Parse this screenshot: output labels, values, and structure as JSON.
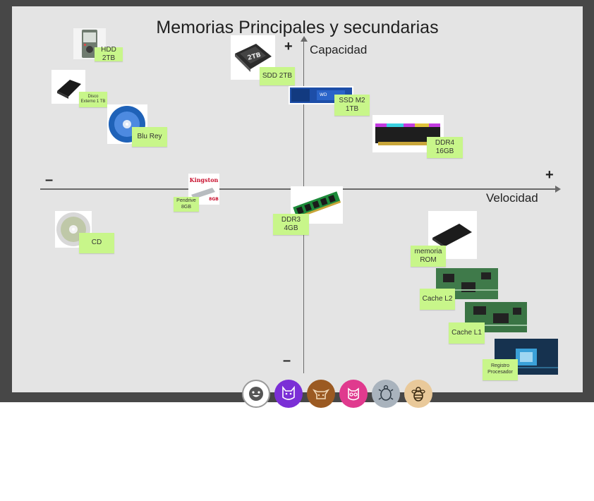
{
  "board": {
    "title": "Memorias Principales y secundarias",
    "y_axis": {
      "label": "Capacidad",
      "plus": "+",
      "minus": "–"
    },
    "x_axis": {
      "label": "Velocidad",
      "plus": "+",
      "minus": "–"
    }
  },
  "items": [
    {
      "id": "hdd",
      "note": "HDD 2TB"
    },
    {
      "id": "ext",
      "note": "Disco\nExterno 1 TB"
    },
    {
      "id": "bluray",
      "note": "Blu Rey"
    },
    {
      "id": "ssd",
      "note": "SDD 2TB"
    },
    {
      "id": "m2",
      "note": "SSD M2\n1TB"
    },
    {
      "id": "ddr4",
      "note": "DDR4\n16GB"
    },
    {
      "id": "pendrive",
      "note": "Pendrive\n8GB"
    },
    {
      "id": "ddr3",
      "note": "DDR3\n4GB"
    },
    {
      "id": "cd",
      "note": "CD"
    },
    {
      "id": "rom",
      "note": "memoria\nROM"
    },
    {
      "id": "l2",
      "note": "Cache L2"
    },
    {
      "id": "l1",
      "note": "Cache L1"
    },
    {
      "id": "reg",
      "note": "Registro\nProcesador"
    }
  ],
  "images": {
    "ssd_label": "2TB",
    "kingston_brand": "Kingston",
    "kingston_size": "8GB",
    "m2_brand": "WD"
  },
  "toolbar": {
    "tools": [
      {
        "name": "smiley-tool",
        "color": "#ffffff"
      },
      {
        "name": "cat-tool",
        "color": "#7b2fd6"
      },
      {
        "name": "cow-tool",
        "color": "#9b5a22"
      },
      {
        "name": "monster-tool",
        "color": "#e03a8e"
      },
      {
        "name": "turtle-tool",
        "color": "#a9b3bd"
      },
      {
        "name": "bee-tool",
        "color": "#e9c99a"
      }
    ]
  }
}
